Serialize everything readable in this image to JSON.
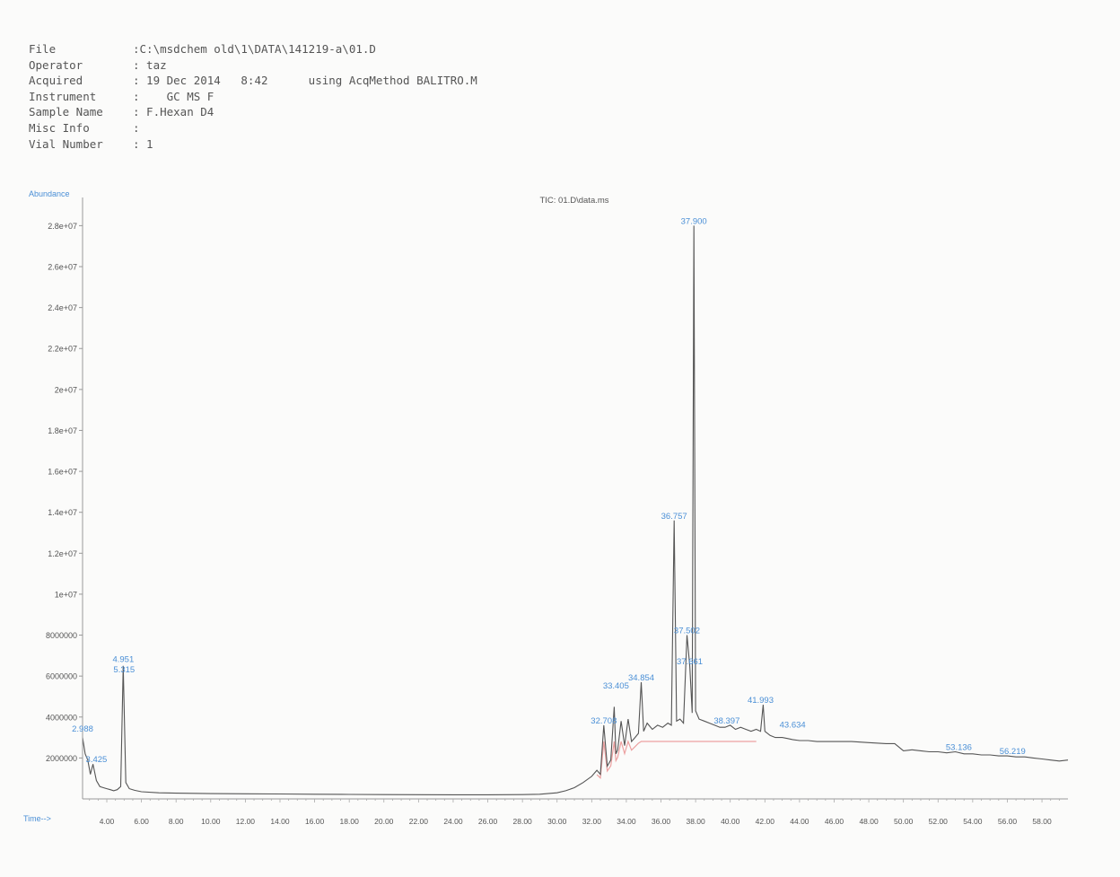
{
  "header": {
    "rows": [
      {
        "label": "File",
        "text": ":C:\\msdchem old\\1\\DATA\\141219-a\\01.D"
      },
      {
        "label": "Operator",
        "text": ": taz"
      },
      {
        "label": "Acquired",
        "text": ": 19 Dec 2014   8:42      using AcqMethod BALITRO.M"
      },
      {
        "label": "Instrument",
        "text": ":    GC MS F"
      },
      {
        "label": "Sample Name",
        "text": ": F.Hexan D4"
      },
      {
        "label": "Misc Info",
        "text": ":"
      },
      {
        "label": "Vial Number",
        "text": ": 1"
      }
    ]
  },
  "chart_data": {
    "type": "line",
    "title": "TIC: 01.D\\data.ms",
    "ylabel": "Abundance",
    "xlabel": "Time-->",
    "xlim": [
      2.6,
      59.5
    ],
    "ylim": [
      0,
      28500000
    ],
    "y_ticks": [
      2000000,
      4000000,
      6000000,
      8000000,
      10000000,
      12000000,
      14000000,
      16000000,
      18000000,
      20000000,
      22000000,
      24000000,
      26000000,
      28000000
    ],
    "y_tick_labels": [
      "2000000",
      "4000000",
      "6000000",
      "8000000",
      "1e+07",
      "1.2e+07",
      "1.4e+07",
      "1.6e+07",
      "1.8e+07",
      "2e+07",
      "2.2e+07",
      "2.4e+07",
      "2.6e+07",
      "2.8e+07"
    ],
    "x_ticks": [
      4,
      6,
      8,
      10,
      12,
      14,
      16,
      18,
      20,
      22,
      24,
      26,
      28,
      30,
      32,
      34,
      36,
      38,
      40,
      42,
      44,
      46,
      48,
      50,
      52,
      54,
      56,
      58
    ],
    "x_tick_labels": [
      "4.00",
      "6.00",
      "8.00",
      "10.00",
      "12.00",
      "14.00",
      "16.00",
      "18.00",
      "20.00",
      "22.00",
      "24.00",
      "26.00",
      "28.00",
      "30.00",
      "32.00",
      "34.00",
      "36.00",
      "38.00",
      "40.00",
      "42.00",
      "44.00",
      "46.00",
      "48.00",
      "50.00",
      "52.00",
      "54.00",
      "56.00",
      "58.00"
    ],
    "grid": false,
    "line_color": "#555555",
    "label_color": "#4a8fd6",
    "baseline_color": "#e88a8a",
    "series": [
      {
        "x": [
          2.6,
          2.75,
          2.9,
          3.05,
          3.2,
          3.4,
          3.6,
          3.8,
          4.0,
          4.2,
          4.4,
          4.6,
          4.8,
          4.95,
          5.1,
          5.3,
          5.6,
          6.0,
          7.0,
          8.0,
          10.0,
          12.0,
          14.0,
          16.0,
          18.0,
          20.0,
          22.0,
          24.0,
          26.0,
          28.0,
          29.0,
          30.0,
          30.5,
          31.0,
          31.5,
          32.0,
          32.3,
          32.5,
          32.7,
          32.9,
          33.1,
          33.3,
          33.4,
          33.5,
          33.7,
          33.9,
          34.1,
          34.3,
          34.5,
          34.7,
          34.86,
          35.0,
          35.2,
          35.5,
          35.8,
          36.1,
          36.4,
          36.6,
          36.76,
          36.9,
          37.1,
          37.3,
          37.5,
          37.66,
          37.8,
          37.9,
          38.0,
          38.2,
          38.5,
          38.8,
          39.1,
          39.4,
          39.7,
          40.0,
          40.3,
          40.6,
          40.9,
          41.2,
          41.5,
          41.75,
          41.9,
          42.0,
          42.3,
          42.6,
          43.0,
          43.3,
          43.6,
          44.0,
          44.5,
          45.0,
          46.0,
          47.0,
          48.0,
          49.0,
          49.5,
          50.0,
          50.5,
          51.0,
          51.5,
          52.0,
          52.5,
          53.0,
          53.5,
          54.0,
          54.5,
          55.0,
          55.5,
          56.0,
          56.5,
          57.0,
          57.5,
          58.0,
          58.5,
          59.0,
          59.5
        ],
        "y": [
          3000000,
          2200000,
          1900000,
          1200000,
          1700000,
          900000,
          600000,
          550000,
          500000,
          450000,
          400000,
          450000,
          600000,
          6500000,
          800000,
          500000,
          420000,
          350000,
          300000,
          280000,
          260000,
          250000,
          240000,
          230000,
          220000,
          210000,
          205000,
          200000,
          200000,
          210000,
          230000,
          300000,
          400000,
          550000,
          800000,
          1100000,
          1400000,
          1200000,
          3600000,
          1600000,
          1900000,
          4500000,
          2200000,
          2400000,
          3800000,
          2600000,
          3900000,
          2800000,
          3000000,
          3200000,
          5700000,
          3300000,
          3700000,
          3400000,
          3600000,
          3500000,
          3700000,
          3600000,
          13600000,
          3800000,
          3900000,
          3700000,
          8000000,
          6500000,
          4200000,
          28000000,
          4300000,
          3900000,
          3800000,
          3700000,
          3600000,
          3500000,
          3500000,
          3600000,
          3400000,
          3500000,
          3400000,
          3300000,
          3400000,
          3300000,
          4600000,
          3300000,
          3100000,
          3000000,
          3000000,
          2950000,
          2900000,
          2850000,
          2850000,
          2800000,
          2800000,
          2800000,
          2750000,
          2700000,
          2700000,
          2350000,
          2400000,
          2350000,
          2300000,
          2300000,
          2250000,
          2300000,
          2200000,
          2200000,
          2150000,
          2150000,
          2100000,
          2100000,
          2050000,
          2050000,
          2000000,
          1950000,
          1900000,
          1850000,
          1900000
        ]
      }
    ],
    "peak_labels": [
      {
        "label": "37.900",
        "x": 37.9,
        "y": 28000000
      },
      {
        "label": "36.757",
        "x": 36.76,
        "y": 13600000
      },
      {
        "label": "37.502",
        "x": 37.5,
        "y": 8000000
      },
      {
        "label": "37.661",
        "x": 37.66,
        "y": 6500000
      },
      {
        "label": "4.951",
        "x": 4.95,
        "y": 6600000
      },
      {
        "label": "5.315",
        "x": 5.0,
        "y": 6100000
      },
      {
        "label": "34.854",
        "x": 34.86,
        "y": 5700000
      },
      {
        "label": "33.405",
        "x": 33.4,
        "y": 5300000
      },
      {
        "label": "41.993",
        "x": 41.75,
        "y": 4600000
      },
      {
        "label": "32.708",
        "x": 32.7,
        "y": 3600000
      },
      {
        "label": "38.397",
        "x": 39.8,
        "y": 3600000
      },
      {
        "label": "43.634",
        "x": 43.6,
        "y": 3400000
      },
      {
        "label": "2.988",
        "x": 2.6,
        "y": 3200000
      },
      {
        "label": "3.425",
        "x": 3.4,
        "y": 1700000
      },
      {
        "label": "53.136",
        "x": 53.2,
        "y": 2300000
      },
      {
        "label": "56.219",
        "x": 56.3,
        "y": 2100000
      }
    ]
  }
}
